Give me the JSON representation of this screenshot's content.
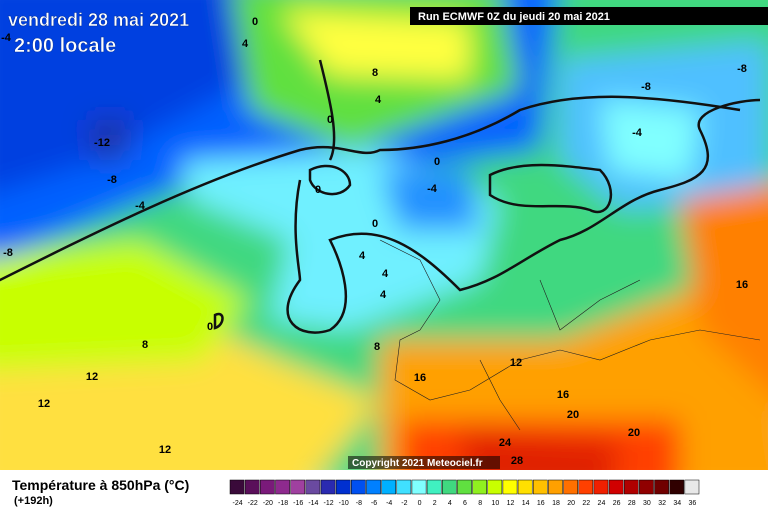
{
  "header": {
    "date": "vendredi 28 mai 2021",
    "time": "2:00 locale",
    "run": "Run ECMWF 0Z du jeudi 20 mai 2021"
  },
  "map": {
    "contour_labels": [
      "0",
      "4",
      "8",
      "4",
      "0",
      "-12",
      "-8",
      "-4",
      "-8",
      "0",
      "-4",
      "0",
      "0",
      "4",
      "4",
      "4",
      "0",
      "8",
      "8",
      "12",
      "12",
      "12",
      "16",
      "12",
      "16",
      "20",
      "20",
      "24",
      "28",
      "16",
      "-8",
      "-8",
      "-4",
      "-4"
    ],
    "copyright": "Copyright 2021 Meteociel.fr"
  },
  "legend": {
    "title": "Température à 850hPa (°C)",
    "subtitle": "(+192h)",
    "labels": [
      -24,
      -22,
      -20,
      -18,
      -16,
      -14,
      -12,
      -10,
      -8,
      -6,
      -4,
      -2,
      0,
      2,
      4,
      6,
      8,
      10,
      12,
      14,
      16,
      18,
      20,
      22,
      24,
      26,
      28,
      30,
      32,
      34,
      36
    ],
    "colors": [
      "#3a0a3a",
      "#5a0f5a",
      "#7a1a7a",
      "#8e2a8e",
      "#a040a0",
      "#6a4aa0",
      "#2a2ab0",
      "#0030d0",
      "#0050f0",
      "#0080ff",
      "#00b0ff",
      "#40e0ff",
      "#80ffff",
      "#40f0c0",
      "#40d880",
      "#60e040",
      "#90f020",
      "#c8ff00",
      "#ffff00",
      "#ffe000",
      "#ffc000",
      "#ffa000",
      "#ff7000",
      "#ff4000",
      "#f02000",
      "#d00000",
      "#b00000",
      "#900000",
      "#700000",
      "#300000",
      "#e8e8e8"
    ]
  }
}
